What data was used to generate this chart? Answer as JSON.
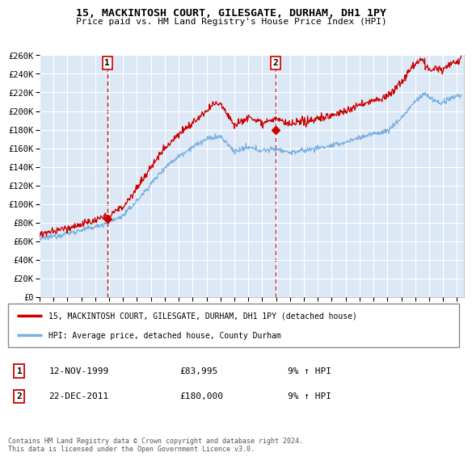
{
  "title": "15, MACKINTOSH COURT, GILESGATE, DURHAM, DH1 1PY",
  "subtitle": "Price paid vs. HM Land Registry's House Price Index (HPI)",
  "legend_line1": "15, MACKINTOSH COURT, GILESGATE, DURHAM, DH1 1PY (detached house)",
  "legend_line2": "HPI: Average price, detached house, County Durham",
  "footer": "Contains HM Land Registry data © Crown copyright and database right 2024.\nThis data is licensed under the Open Government Licence v3.0.",
  "sale1_date": "12-NOV-1999",
  "sale1_price": "£83,995",
  "sale1_hpi": "9% ↑ HPI",
  "sale2_date": "22-DEC-2011",
  "sale2_price": "£180,000",
  "sale2_hpi": "9% ↑ HPI",
  "hpi_color": "#7aafe0",
  "price_color": "#cc0000",
  "marker_color": "#cc0000",
  "vline_color": "#cc0000",
  "plot_bg": "#dce8f5",
  "grid_color": "#ffffff",
  "ylim": [
    0,
    260000
  ],
  "yticks": [
    0,
    20000,
    40000,
    60000,
    80000,
    100000,
    120000,
    140000,
    160000,
    180000,
    200000,
    220000,
    240000,
    260000
  ],
  "sale1_x": 1999.87,
  "sale1_y": 83995,
  "sale2_x": 2011.97,
  "sale2_y": 180000,
  "xmin": 1995.0,
  "xmax": 2025.5
}
